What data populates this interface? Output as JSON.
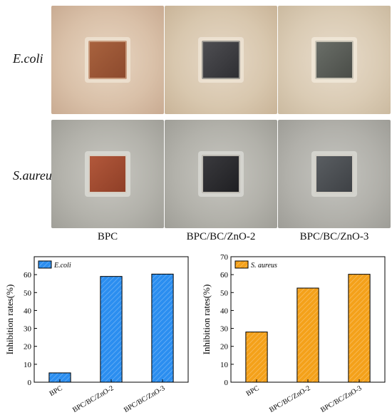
{
  "rows": [
    {
      "label": "E.coli"
    },
    {
      "label": "S.aureus"
    }
  ],
  "columns": [
    {
      "label": "BPC"
    },
    {
      "label": "BPC/BC/ZnO-2"
    },
    {
      "label": "BPC/BC/ZnO-3"
    }
  ],
  "chart_data": [
    {
      "type": "bar",
      "legend": "E.coli",
      "legend_placement": "top-left",
      "color": "#2b8ef0",
      "ylabel": "Inhibition rates(%)",
      "xlabel": "",
      "ylim": [
        0,
        70
      ],
      "yticks": [
        0,
        10,
        20,
        30,
        40,
        50,
        60
      ],
      "categories": [
        "BPC",
        "BPC/BC/ZnO-2",
        "BPC/BC/ZnO-3"
      ],
      "values": [
        5.2,
        59.0,
        60.3
      ]
    },
    {
      "type": "bar",
      "legend": "S. aureus",
      "legend_placement": "top-left",
      "color": "#f4a11a",
      "ylabel": "Inhibition rates(%)",
      "xlabel": "",
      "ylim": [
        0,
        70
      ],
      "yticks": [
        0,
        10,
        20,
        30,
        40,
        50,
        60,
        70
      ],
      "categories": [
        "BPC",
        "BPC/BC/ZnO-2",
        "BPC/BC/ZnO-3"
      ],
      "values": [
        28.0,
        52.5,
        60.2
      ]
    }
  ]
}
